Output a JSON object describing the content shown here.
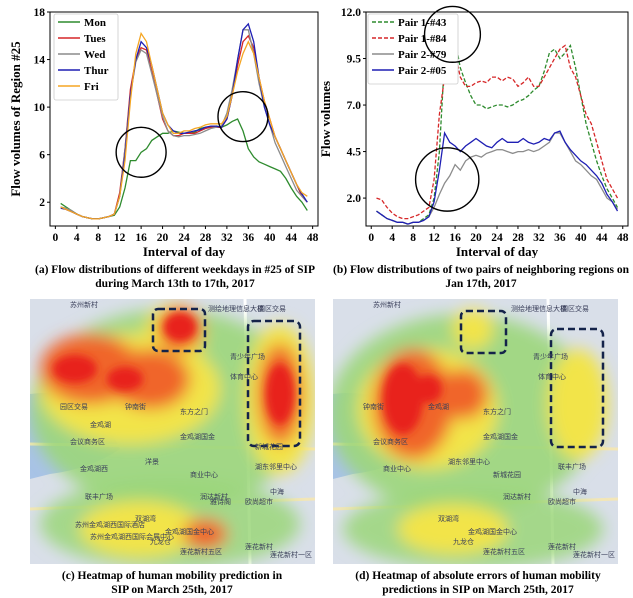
{
  "chart_data": [
    {
      "type": "line",
      "xlabel": "Interval of day",
      "ylabel": "Flow volumes of Region #25",
      "xticks": [
        0,
        4,
        8,
        12,
        16,
        20,
        24,
        28,
        32,
        36,
        40,
        44,
        48
      ],
      "yticks": [
        2,
        6,
        10,
        14,
        18
      ],
      "xlim": [
        -1,
        49
      ],
      "ylim": [
        0,
        18
      ],
      "legend": "top-left",
      "grid": false,
      "colors": {
        "Mon": "#2e8b2e",
        "Tues": "#d62728",
        "Wed": "#8c8c8c",
        "Thur": "#1f1fb4",
        "Fri": "#f5a623"
      },
      "x": [
        1,
        2,
        3,
        4,
        5,
        6,
        7,
        8,
        9,
        10,
        11,
        12,
        13,
        14,
        15,
        16,
        17,
        18,
        19,
        20,
        21,
        22,
        23,
        24,
        25,
        26,
        27,
        28,
        29,
        30,
        31,
        32,
        33,
        34,
        35,
        36,
        37,
        38,
        39,
        40,
        41,
        42,
        43,
        44,
        45,
        46,
        47
      ],
      "series": [
        {
          "name": "Mon",
          "values": [
            1.9,
            1.6,
            1.3,
            1.0,
            0.8,
            0.7,
            0.6,
            0.6,
            0.7,
            0.8,
            0.9,
            1.6,
            3.2,
            5.5,
            5.5,
            6.2,
            6.5,
            7.2,
            7.5,
            7.8,
            7.8,
            8.0,
            7.9,
            7.8,
            7.8,
            7.9,
            8.2,
            8.3,
            8.3,
            8.4,
            8.3,
            8.5,
            8.8,
            9.0,
            8.0,
            6.5,
            5.8,
            5.4,
            5.2,
            5.0,
            4.8,
            4.6,
            4.0,
            3.2,
            2.5,
            2.0,
            1.3
          ]
        },
        {
          "name": "Tues",
          "values": [
            1.6,
            1.4,
            1.2,
            1.0,
            0.8,
            0.7,
            0.6,
            0.6,
            0.7,
            0.8,
            1.0,
            2.8,
            6.5,
            11.5,
            14.0,
            15.0,
            14.8,
            13.0,
            11.0,
            9.0,
            8.0,
            7.6,
            7.6,
            7.8,
            7.8,
            7.8,
            8.0,
            8.2,
            8.3,
            8.3,
            8.3,
            9.0,
            11.0,
            13.5,
            15.5,
            16.0,
            15.0,
            12.5,
            10.5,
            9.0,
            7.5,
            6.5,
            5.5,
            4.5,
            3.5,
            2.5,
            2.0
          ]
        },
        {
          "name": "Wed",
          "values": [
            1.6,
            1.5,
            1.3,
            1.0,
            0.8,
            0.7,
            0.6,
            0.6,
            0.7,
            0.8,
            1.0,
            2.5,
            6.5,
            11.0,
            13.8,
            14.8,
            14.5,
            12.8,
            11.0,
            9.2,
            8.0,
            7.6,
            7.5,
            7.6,
            7.6,
            7.7,
            7.8,
            8.0,
            8.2,
            8.3,
            8.4,
            9.5,
            11.5,
            14.0,
            16.5,
            16.5,
            14.5,
            12.0,
            10.0,
            8.5,
            7.0,
            6.0,
            5.0,
            4.0,
            3.0,
            2.5,
            2.0
          ]
        },
        {
          "name": "Thur",
          "values": [
            1.5,
            1.4,
            1.2,
            1.0,
            0.8,
            0.7,
            0.6,
            0.6,
            0.7,
            0.8,
            1.0,
            2.5,
            6.0,
            11.0,
            14.0,
            15.5,
            15.0,
            13.5,
            11.5,
            9.5,
            8.5,
            8.0,
            7.8,
            7.8,
            7.9,
            8.0,
            8.1,
            8.3,
            8.4,
            8.4,
            8.3,
            9.0,
            11.0,
            14.0,
            16.5,
            17.0,
            15.5,
            12.5,
            10.0,
            8.5,
            7.5,
            6.5,
            5.5,
            4.5,
            3.5,
            2.7,
            2.0
          ]
        },
        {
          "name": "Fri",
          "values": [
            1.6,
            1.4,
            1.2,
            1.0,
            0.8,
            0.7,
            0.6,
            0.6,
            0.7,
            0.8,
            1.0,
            2.5,
            5.5,
            10.5,
            14.5,
            16.2,
            15.5,
            13.5,
            11.5,
            9.5,
            8.5,
            7.8,
            7.8,
            8.0,
            8.0,
            8.2,
            8.3,
            8.5,
            8.6,
            8.6,
            8.6,
            9.2,
            11.0,
            13.0,
            14.5,
            15.5,
            14.5,
            12.5,
            10.5,
            9.0,
            7.5,
            6.5,
            5.5,
            4.5,
            3.5,
            2.8,
            2.5
          ]
        }
      ],
      "caption": "(a) Flow distributions of different weekdays in #25 of SIP during March 13th to 17th, 2017"
    },
    {
      "type": "line",
      "xlabel": "Interval of day",
      "ylabel": "Flow volumes",
      "xticks": [
        0,
        4,
        8,
        12,
        16,
        20,
        24,
        28,
        32,
        36,
        40,
        44,
        48
      ],
      "yticks": [
        2.0,
        4.5,
        7.0,
        9.5,
        12.0
      ],
      "ytick_labels": [
        "2.0",
        "4.5",
        "7.0",
        "9.5",
        "12.0"
      ],
      "xlim": [
        -1,
        49
      ],
      "ylim": [
        0.5,
        12.0
      ],
      "legend": "top-left",
      "grid": false,
      "x": [
        1,
        2,
        3,
        4,
        5,
        6,
        7,
        8,
        9,
        10,
        11,
        12,
        13,
        14,
        15,
        16,
        17,
        18,
        19,
        20,
        21,
        22,
        23,
        24,
        25,
        26,
        27,
        28,
        29,
        30,
        31,
        32,
        33,
        34,
        35,
        36,
        37,
        38,
        39,
        40,
        41,
        42,
        43,
        44,
        45,
        46,
        47
      ],
      "series": [
        {
          "name": "Pair 1-#43",
          "color": "#2e8b2e",
          "dash": true,
          "values": [
            1.3,
            1.1,
            0.9,
            0.8,
            0.7,
            0.7,
            0.6,
            0.7,
            0.7,
            0.9,
            1.1,
            2.0,
            4.5,
            9.5,
            10.8,
            10.5,
            9.0,
            8.2,
            7.5,
            7.0,
            7.0,
            6.8,
            6.9,
            7.0,
            7.0,
            6.9,
            7.0,
            7.2,
            7.3,
            7.5,
            7.8,
            8.0,
            8.8,
            9.8,
            10.0,
            9.5,
            9.8,
            10.2,
            9.0,
            7.5,
            6.0,
            5.0,
            4.0,
            3.2,
            2.5,
            2.0,
            1.5
          ]
        },
        {
          "name": "Pair 1-#84",
          "color": "#d62728",
          "dash": true,
          "values": [
            2.0,
            1.9,
            1.5,
            1.2,
            1.0,
            0.9,
            0.9,
            1.0,
            1.1,
            1.3,
            1.5,
            3.0,
            6.5,
            8.5,
            9.5,
            9.8,
            8.5,
            8.0,
            8.0,
            8.2,
            8.3,
            8.2,
            8.5,
            8.5,
            8.3,
            8.5,
            8.4,
            8.0,
            8.2,
            8.5,
            8.0,
            8.0,
            8.5,
            9.0,
            9.5,
            10.0,
            10.2,
            9.0,
            8.5,
            7.5,
            6.5,
            6.0,
            5.0,
            4.0,
            3.0,
            2.5,
            2.0
          ]
        },
        {
          "name": "Pair 2-#79",
          "color": "#8c8c8c",
          "dash": false,
          "values": [
            1.3,
            1.1,
            0.9,
            0.8,
            0.7,
            0.7,
            0.6,
            0.7,
            0.7,
            0.8,
            1.0,
            1.5,
            2.2,
            2.8,
            3.2,
            3.8,
            3.5,
            4.0,
            4.2,
            4.3,
            4.2,
            4.4,
            4.5,
            4.6,
            4.6,
            4.5,
            4.4,
            4.5,
            4.5,
            4.6,
            4.5,
            4.6,
            4.8,
            5.0,
            5.5,
            5.5,
            5.0,
            4.5,
            4.0,
            3.8,
            3.5,
            3.2,
            3.0,
            2.5,
            2.0,
            1.8,
            1.4
          ]
        },
        {
          "name": "Pair 2-#05",
          "color": "#1f1fb4",
          "dash": false,
          "values": [
            1.3,
            1.1,
            0.9,
            0.8,
            0.7,
            0.7,
            0.6,
            0.7,
            0.7,
            0.8,
            1.0,
            1.8,
            3.5,
            5.5,
            5.0,
            4.8,
            4.5,
            4.8,
            5.0,
            5.2,
            5.0,
            4.8,
            4.7,
            5.0,
            5.2,
            5.0,
            5.0,
            5.0,
            5.2,
            5.0,
            4.9,
            5.0,
            5.2,
            5.1,
            5.5,
            5.6,
            5.0,
            4.6,
            4.3,
            4.0,
            3.8,
            3.5,
            3.2,
            2.8,
            2.2,
            1.8,
            1.3
          ]
        }
      ],
      "caption": "(b) Flow distributions of two pairs of neighboring regions on Jan 17th, 2017"
    },
    {
      "type": "heatmap",
      "caption": "(c) Heatmap of human mobility prediction in SIP on March 25th, 2017",
      "map_labels": [
        "苏州新村",
        "测绘地理信息大楼",
        "圆区交易",
        "青少年广场",
        "体育中心",
        "会议商务区",
        "金鸡湖国金",
        "园区交易",
        "钟南街",
        "金鸡湖",
        "东方之门",
        "金鸡湖西",
        "洋景",
        "商业中心",
        "湖东邻里中心",
        "新城花园",
        "联丰广场",
        "苏州金鸡湖西国际酒店",
        "雅诗阁",
        "欧尚超市",
        "中海",
        "双湖湾",
        "九龙仓",
        "润达新村",
        "金鸡湖国金中心",
        "苏州金鸡湖西国际会展中心",
        "莲花新村",
        "莲花新村五区",
        "莲花新村一区"
      ]
    },
    {
      "type": "heatmap",
      "caption": "(d) Heatmap of absolute errors of human mobility predictions in SIP on March 25th, 2017",
      "map_labels": [
        "苏州新村",
        "测绘地理信息大楼",
        "圆区交易",
        "青少年广场",
        "体育中心",
        "金鸡湖国金",
        "钟南街",
        "金鸡湖",
        "东方之门",
        "会议商务区",
        "商业中心",
        "湖东邻里中心",
        "新城花园",
        "联丰广场",
        "欧尚超市",
        "中海",
        "双湖湾",
        "九龙仓",
        "润达新村",
        "金鸡湖国金中心",
        "莲花新村",
        "莲花新村五区",
        "莲花新村一区"
      ]
    }
  ]
}
